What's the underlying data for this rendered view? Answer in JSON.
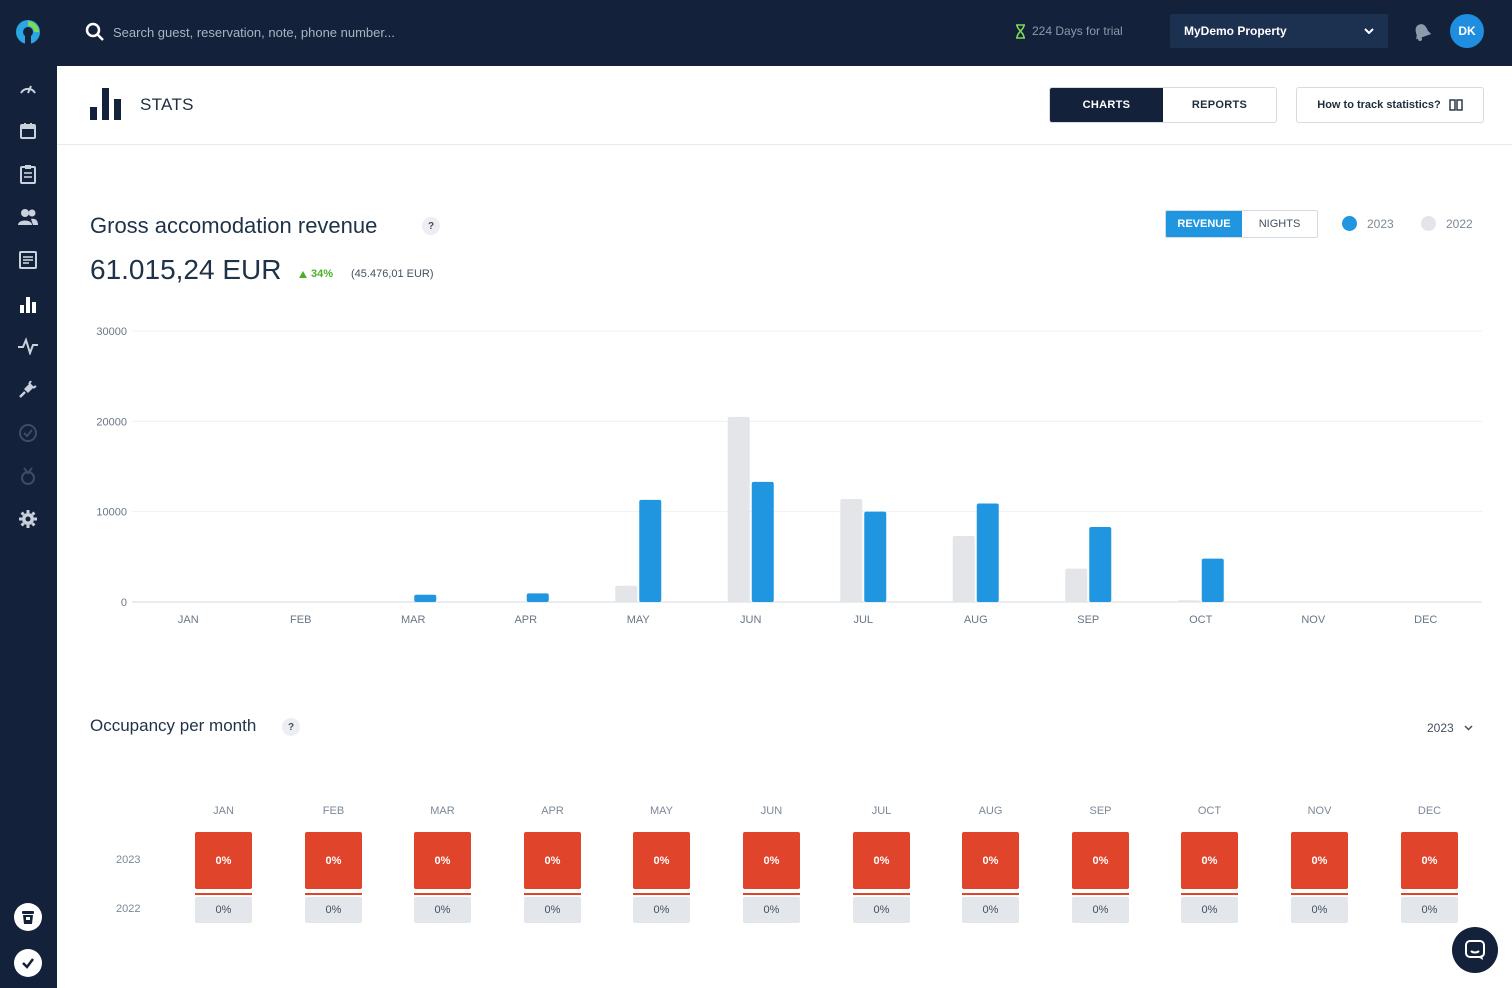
{
  "topbar": {
    "search_placeholder": "Search guest, reservation, note, phone number...",
    "trial_text": "224 Days for trial",
    "property_name": "MyDemo Property",
    "avatar_initials": "DK"
  },
  "sidebar": {
    "items": [
      {
        "icon": "dashboard-gauge-icon"
      },
      {
        "icon": "calendar-icon"
      },
      {
        "icon": "clipboard-icon"
      },
      {
        "icon": "guests-icon"
      },
      {
        "icon": "invoices-icon"
      },
      {
        "icon": "stats-bar-chart-icon",
        "active": true
      },
      {
        "icon": "activity-pulse-icon"
      },
      {
        "icon": "plug-icon"
      },
      {
        "icon": "check-circle-icon"
      },
      {
        "icon": "medal-icon"
      },
      {
        "icon": "settings-gear-icon"
      }
    ],
    "bottom": [
      "trash-bin-icon",
      "checkmark-icon"
    ]
  },
  "header": {
    "title": "STATS",
    "tabs": [
      {
        "label": "CHARTS",
        "active": true
      },
      {
        "label": "REPORTS",
        "active": false
      }
    ],
    "help_label": "How to track statistics?"
  },
  "revenue": {
    "title": "Gross accomodation revenue",
    "help": "?",
    "amount": "61.015,24 EUR",
    "change": "34%",
    "previous": "(45.476,01 EUR)",
    "toggle": [
      {
        "label": "REVENUE",
        "active": true
      },
      {
        "label": "NIGHTS",
        "active": false
      }
    ],
    "legend": [
      {
        "label": "2023",
        "color": "#2196e0"
      },
      {
        "label": "2022",
        "color": "#e3e5e8"
      }
    ]
  },
  "chart_data": {
    "type": "bar",
    "categories": [
      "JAN",
      "FEB",
      "MAR",
      "APR",
      "MAY",
      "JUN",
      "JUL",
      "AUG",
      "SEP",
      "OCT",
      "NOV",
      "DEC"
    ],
    "series": [
      {
        "name": "2022",
        "color": "#e3e5e8",
        "values": [
          0,
          0,
          0,
          0,
          1800,
          20500,
          11400,
          7300,
          3700,
          200,
          0,
          0
        ]
      },
      {
        "name": "2023",
        "color": "#2196e0",
        "values": [
          0,
          0,
          800,
          950,
          11300,
          13300,
          10000,
          10900,
          8300,
          4800,
          0,
          0
        ]
      }
    ],
    "yticks": [
      0,
      10000,
      20000,
      30000
    ],
    "ylim": [
      0,
      30000
    ],
    "grid": true,
    "title": "",
    "xlabel": "",
    "ylabel": ""
  },
  "occupancy": {
    "title": "Occupancy per month",
    "help": "?",
    "year_selected": "2023",
    "months": [
      "JAN",
      "FEB",
      "MAR",
      "APR",
      "MAY",
      "JUN",
      "JUL",
      "AUG",
      "SEP",
      "OCT",
      "NOV",
      "DEC"
    ],
    "rows": [
      {
        "year": "2023",
        "values": [
          "0%",
          "0%",
          "0%",
          "0%",
          "0%",
          "0%",
          "0%",
          "0%",
          "0%",
          "0%",
          "0%",
          "0%"
        ],
        "color": "#e0452b"
      },
      {
        "year": "2022",
        "values": [
          "0%",
          "0%",
          "0%",
          "0%",
          "0%",
          "0%",
          "0%",
          "0%",
          "0%",
          "0%",
          "0%",
          "0%"
        ],
        "color": "#e3e6ea"
      }
    ]
  }
}
